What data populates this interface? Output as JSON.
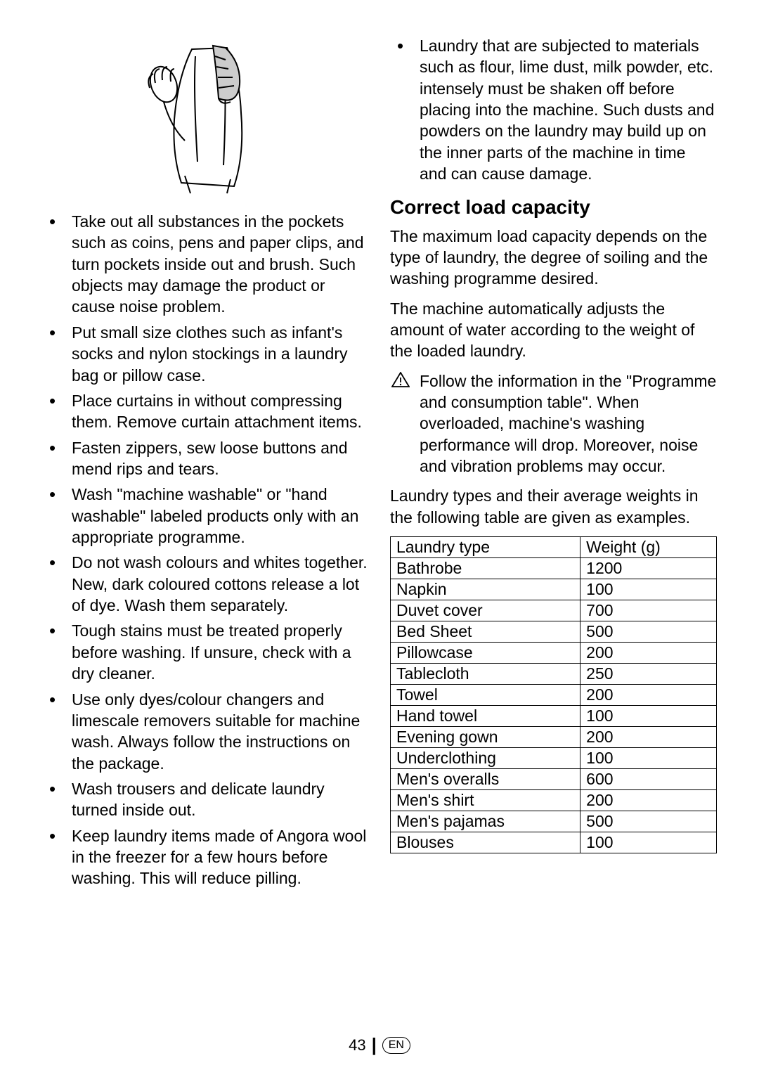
{
  "left_bullets": [
    "Take out all substances in the pockets such as coins, pens and paper clips, and turn pockets inside out and brush. Such objects may damage the product or cause noise problem.",
    "Put small size clothes such as infant's socks and nylon stockings in a laundry bag or pillow case.",
    "Place curtains in without compressing them. Remove curtain attachment items.",
    "Fasten zippers, sew loose buttons and mend rips and tears.",
    "Wash \"machine washable\" or \"hand washable\" labeled products only with an appropriate programme.",
    "Do not wash colours and whites together. New, dark coloured cottons release a lot of dye. Wash them separately.",
    "Tough stains must be treated properly before washing. If unsure, check with a dry cleaner.",
    "Use only dyes/colour changers and limescale removers suitable for machine wash. Always follow the instructions on the package.",
    "Wash trousers and delicate laundry turned inside out.",
    "Keep laundry items made of Angora wool in the freezer for a few hours before washing. This will reduce pilling."
  ],
  "right_bullets": [
    "Laundry that are subjected to materials such as flour, lime dust, milk powder, etc. intensely must be shaken off before placing into the machine. Such dusts and powders on the laundry may build up on the inner parts of the machine in time and can cause damage."
  ],
  "section_heading": "Correct load capacity",
  "para1": "The maximum load capacity depends on the type of laundry, the degree of soiling and the washing programme desired.",
  "para2": "The machine automatically adjusts the amount of water according to the weight of the loaded laundry.",
  "warning_text": "Follow the information in the \"Programme and consumption table\". When overloaded, machine's washing performance will drop. Moreover, noise and vibration problems may occur.",
  "para3": "Laundry types and their average weights in the following table are given as examples.",
  "table": {
    "col1": "Laundry type",
    "col2": "Weight (g)",
    "rows": [
      [
        "Bathrobe",
        "1200"
      ],
      [
        "Napkin",
        "100"
      ],
      [
        "Duvet cover",
        "700"
      ],
      [
        "Bed Sheet",
        "500"
      ],
      [
        "Pillowcase",
        "200"
      ],
      [
        "Tablecloth",
        "250"
      ],
      [
        "Towel",
        "200"
      ],
      [
        "Hand towel",
        "100"
      ],
      [
        "Evening gown",
        "200"
      ],
      [
        "Underclothing",
        "100"
      ],
      [
        "Men's overalls",
        "600"
      ],
      [
        "Men's shirt",
        "200"
      ],
      [
        "Men's pajamas",
        "500"
      ],
      [
        "Blouses",
        "100"
      ]
    ]
  },
  "footer": {
    "page": "43",
    "lang": "EN"
  }
}
